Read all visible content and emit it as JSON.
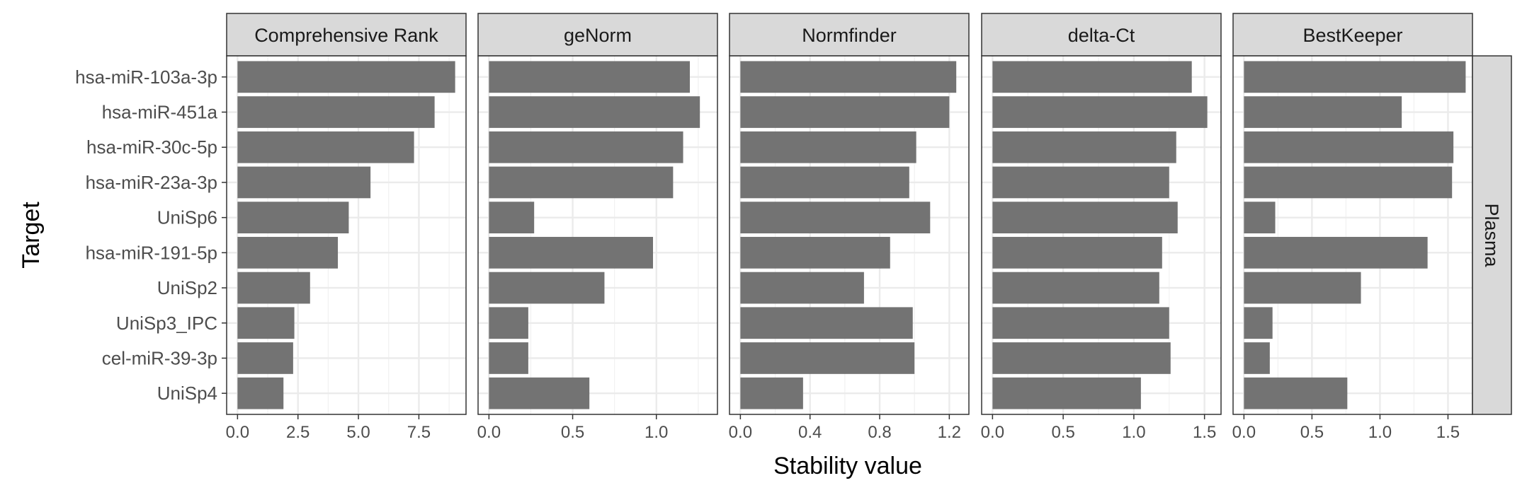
{
  "chart_data": {
    "type": "bar",
    "orientation": "horizontal",
    "xlabel": "Stability value",
    "ylabel": "Target",
    "row_facet": "Plasma",
    "grid": true,
    "categories": [
      "hsa-miR-103a-3p",
      "hsa-miR-451a",
      "hsa-miR-30c-5p",
      "hsa-miR-23a-3p",
      "UniSp6",
      "hsa-miR-191-5p",
      "UniSp2",
      "UniSp3_IPC",
      "cel-miR-39-3p",
      "UniSp4"
    ],
    "bar_color": "#737373",
    "panels": [
      {
        "name": "Comprehensive Rank",
        "xlim": [
          -0.45,
          9.45
        ],
        "ticks": [
          0,
          2.5,
          5,
          7.5
        ],
        "tick_labels": [
          "0.0",
          "2.5",
          "5.0",
          "7.5"
        ],
        "values": [
          9.0,
          8.15,
          7.3,
          5.5,
          4.6,
          4.15,
          3.0,
          2.35,
          2.3,
          1.9
        ]
      },
      {
        "name": "geNorm",
        "xlim": [
          -0.065,
          1.365
        ],
        "ticks": [
          0,
          0.5,
          1.0
        ],
        "tick_labels": [
          "0.0",
          "0.5",
          "1.0"
        ],
        "values": [
          1.2,
          1.26,
          1.16,
          1.1,
          0.27,
          0.98,
          0.69,
          0.235,
          0.235,
          0.6
        ]
      },
      {
        "name": "Normfinder",
        "xlim": [
          -0.0625,
          1.3125
        ],
        "ticks": [
          0,
          0.4,
          0.8,
          1.2
        ],
        "tick_labels": [
          "0.0",
          "0.4",
          "0.8",
          "1.2"
        ],
        "values": [
          1.24,
          1.2,
          1.01,
          0.97,
          1.09,
          0.86,
          0.71,
          0.99,
          1.0,
          0.36
        ]
      },
      {
        "name": "delta-Ct",
        "xlim": [
          -0.077,
          1.617
        ],
        "ticks": [
          0,
          0.5,
          1.0,
          1.5
        ],
        "tick_labels": [
          "0.0",
          "0.5",
          "1.0",
          "1.5"
        ],
        "values": [
          1.41,
          1.52,
          1.3,
          1.25,
          1.31,
          1.2,
          1.18,
          1.25,
          1.26,
          1.05
        ]
      },
      {
        "name": "BestKeeper",
        "xlim": [
          -0.08,
          1.68
        ],
        "ticks": [
          0,
          0.5,
          1.0,
          1.5
        ],
        "tick_labels": [
          "0.0",
          "0.5",
          "1.0",
          "1.5"
        ],
        "values": [
          1.63,
          1.16,
          1.54,
          1.53,
          0.23,
          1.35,
          0.86,
          0.21,
          0.19,
          0.76
        ]
      }
    ]
  }
}
